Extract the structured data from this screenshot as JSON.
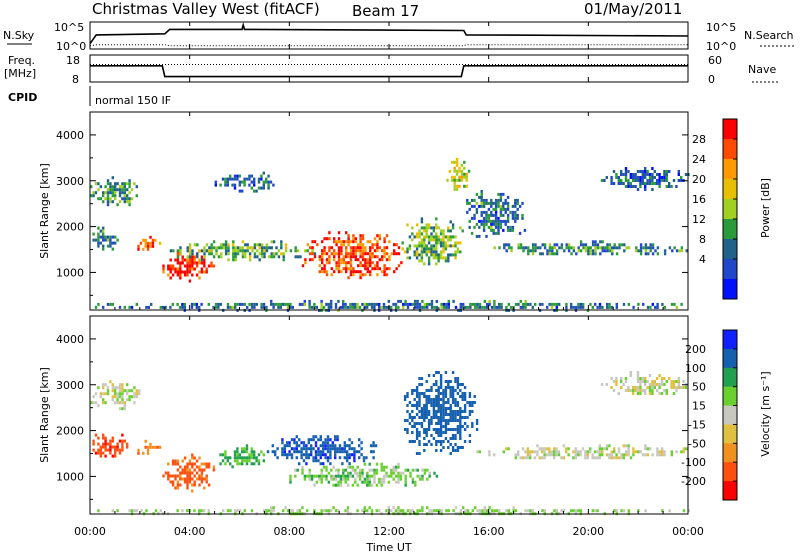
{
  "header": {
    "title": "Christmas Valley West (fitACF)",
    "beam": "Beam 17",
    "date": "01/May/2011"
  },
  "top_panels": {
    "nsky_label": "N.Sky",
    "nsky_ticks": [
      "10^5",
      "10^0"
    ],
    "nsearch_label": "N.Search",
    "nsearch_ticks": [
      "10^5",
      "10^0"
    ],
    "freq_label_1": "Freq.",
    "freq_label_2": "[MHz]",
    "freq_ticks": [
      "18",
      "8"
    ],
    "nave_label": "Nave",
    "nave_ticks": [
      "60",
      "0"
    ],
    "cpid_label": "CPID",
    "cpid_text": "normal 150 IF"
  },
  "chart_data": [
    {
      "type": "line",
      "name": "nsky-nsearch",
      "x_hours": [
        0,
        0.25,
        3,
        3.2,
        6.1,
        6.15,
        6.2,
        15,
        15.1,
        24
      ],
      "nsky_level": [
        0.15,
        0.55,
        0.6,
        0.8,
        0.8,
        1.0,
        0.8,
        0.75,
        0.55,
        0.5
      ],
      "nsearch_level": [
        0.1,
        0.15,
        0.15,
        0.1,
        0.1,
        0.1,
        0.1,
        0.1,
        0.15,
        0.15
      ]
    },
    {
      "type": "line",
      "name": "frequency-nave",
      "x_hours": [
        0,
        2.9,
        3.0,
        14.9,
        15.0,
        24
      ],
      "freq_mhz": [
        14,
        14,
        10,
        10,
        14,
        14
      ],
      "freq_range": [
        8,
        18
      ],
      "nave_range": [
        0,
        60
      ]
    },
    {
      "type": "heatmap",
      "name": "power",
      "xlabel": "",
      "ylabel": "Slant Range [km]",
      "ylim": [
        180,
        4500
      ],
      "y_ticks": [
        1000,
        2000,
        3000,
        4000
      ],
      "colorbar_label": "Power [dB]",
      "colorbar_ticks": [
        "28",
        "24",
        "20",
        "16",
        "12",
        "8",
        "4"
      ],
      "colorbar_colors": [
        "#ff0000",
        "#ff4a00",
        "#ff9900",
        "#e6c000",
        "#a0d020",
        "#2a9a3a",
        "#20628a",
        "#2048c8",
        "#0010ff"
      ],
      "regions": [
        {
          "t": [
            0.0,
            2.0
          ],
          "r": [
            2500,
            3100
          ],
          "level": 0.35
        },
        {
          "t": [
            0.0,
            1.2
          ],
          "r": [
            1500,
            2000
          ],
          "level": 0.3
        },
        {
          "t": [
            1.8,
            2.8
          ],
          "r": [
            1500,
            1800
          ],
          "level": 0.85
        },
        {
          "t": [
            2.9,
            5.0
          ],
          "r": [
            800,
            1500
          ],
          "level": 0.95
        },
        {
          "t": [
            3.2,
            9.0
          ],
          "r": [
            1300,
            1700
          ],
          "level": 0.4
        },
        {
          "t": [
            5.0,
            7.5
          ],
          "r": [
            2800,
            3200
          ],
          "level": 0.2
        },
        {
          "t": [
            8.5,
            12.5
          ],
          "r": [
            900,
            1900
          ],
          "level": 0.9
        },
        {
          "t": [
            12.5,
            15.0
          ],
          "r": [
            1200,
            2200
          ],
          "level": 0.45
        },
        {
          "t": [
            14.3,
            15.2
          ],
          "r": [
            2800,
            3500
          ],
          "level": 0.55
        },
        {
          "t": [
            15.0,
            17.5
          ],
          "r": [
            1800,
            2800
          ],
          "level": 0.25
        },
        {
          "t": [
            16.0,
            24.0
          ],
          "r": [
            1400,
            1700
          ],
          "level": 0.3
        },
        {
          "t": [
            20.5,
            24.0
          ],
          "r": [
            2800,
            3300
          ],
          "level": 0.2
        },
        {
          "t": [
            0.0,
            24.0
          ],
          "r": [
            190,
            400
          ],
          "level": 0.25
        }
      ]
    },
    {
      "type": "heatmap",
      "name": "velocity",
      "xlabel": "Time UT",
      "ylabel": "Slant Range [km]",
      "ylim": [
        180,
        4500
      ],
      "y_ticks": [
        1000,
        2000,
        3000,
        4000
      ],
      "x_ticks": [
        "00:00",
        "04:00",
        "08:00",
        "12:00",
        "16:00",
        "20:00",
        "00:00"
      ],
      "x_range_hours": [
        0,
        24
      ],
      "colorbar_label": "Velocity [m s⁻¹]",
      "colorbar_ticks": [
        "200",
        "100",
        "50",
        "15",
        "-15",
        "-50",
        "-100",
        "-200"
      ],
      "colorbar_colors": [
        "#1020ff",
        "#1660b0",
        "#22a050",
        "#6ad030",
        "#c8c8c0",
        "#e0c040",
        "#f09020",
        "#ff5010",
        "#ff0000"
      ],
      "regions": [
        {
          "t": [
            0.0,
            2.0
          ],
          "r": [
            2500,
            3100
          ],
          "v": 0
        },
        {
          "t": [
            0.0,
            1.5
          ],
          "r": [
            1400,
            2000
          ],
          "v": -180
        },
        {
          "t": [
            1.8,
            2.8
          ],
          "r": [
            1500,
            1800
          ],
          "v": -100
        },
        {
          "t": [
            2.9,
            5.0
          ],
          "r": [
            700,
            1500
          ],
          "v": -120
        },
        {
          "t": [
            5.0,
            7.0
          ],
          "r": [
            1200,
            1700
          ],
          "v": 60
        },
        {
          "t": [
            7.0,
            11.5
          ],
          "r": [
            1300,
            1900
          ],
          "v": 180
        },
        {
          "t": [
            8.0,
            14.0
          ],
          "r": [
            800,
            1300
          ],
          "v": 30
        },
        {
          "t": [
            12.5,
            15.5
          ],
          "r": [
            1500,
            3300
          ],
          "v": 150
        },
        {
          "t": [
            15.5,
            24.0
          ],
          "r": [
            1400,
            1700
          ],
          "v": 0
        },
        {
          "t": [
            20.5,
            24.0
          ],
          "r": [
            2800,
            3300
          ],
          "v": 0
        },
        {
          "t": [
            0.0,
            24.0
          ],
          "r": [
            190,
            350
          ],
          "v": 20
        }
      ]
    }
  ]
}
